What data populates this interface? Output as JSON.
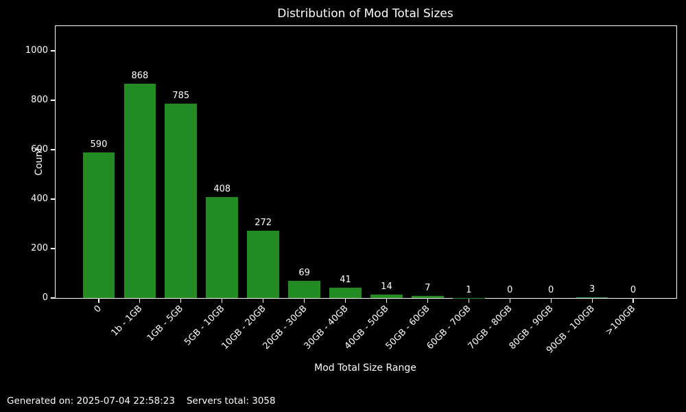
{
  "chart_data": {
    "type": "bar",
    "title": "Distribution of Mod Total Sizes",
    "xlabel": "Mod Total Size Range",
    "ylabel": "Count",
    "categories": [
      "0",
      "1b - 1GB",
      "1GB - 5GB",
      "5GB - 10GB",
      "10GB - 20GB",
      "20GB - 30GB",
      "30GB - 40GB",
      "40GB - 50GB",
      "50GB - 60GB",
      "60GB - 70GB",
      "70GB - 80GB",
      "80GB - 90GB",
      "90GB - 100GB",
      ">100GB"
    ],
    "values": [
      590,
      868,
      785,
      408,
      272,
      69,
      41,
      14,
      7,
      1,
      0,
      0,
      3,
      0
    ],
    "yticks": [
      0,
      200,
      400,
      600,
      800,
      1000
    ],
    "ylim": [
      0,
      1100
    ],
    "x_tick_rotation": 45,
    "grid": false,
    "bar_labels": true,
    "bar_color": "#228B22",
    "background_color": "#000000",
    "text_color": "#ffffff",
    "spine_color": "#ffffff"
  },
  "footer": {
    "generated_on": "Generated on: 2025-07-04 22:58:23",
    "servers_total": "Servers total: 3058"
  }
}
